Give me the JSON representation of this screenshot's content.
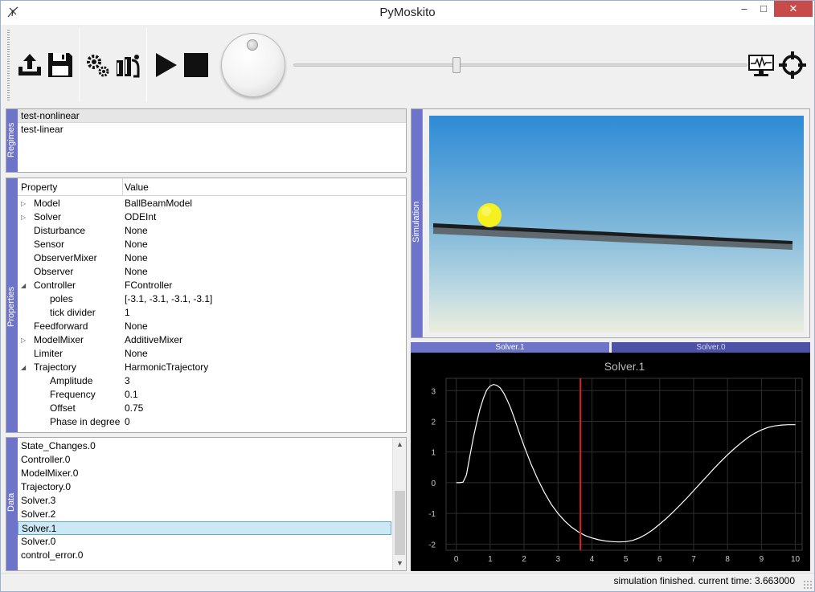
{
  "window": {
    "title": "PyMoskito",
    "minimize": "–",
    "maximize": "□",
    "close": "✕"
  },
  "toolbar": {
    "buttons": [
      "upload-icon",
      "save-icon",
      "settings-icon",
      "simulate-settings-icon",
      "play-icon",
      "stop-icon",
      "monitor-icon",
      "target-icon"
    ],
    "slider_position": 0.36
  },
  "regimes": {
    "label": "Regimes",
    "items": [
      "test-nonlinear",
      "test-linear"
    ],
    "selected": 0
  },
  "properties": {
    "label": "Properties",
    "header": {
      "property": "Property",
      "value": "Value"
    },
    "rows": [
      {
        "name": "Model",
        "value": "BallBeamModel",
        "level": 0,
        "arrow": "collapsed"
      },
      {
        "name": "Solver",
        "value": "ODEInt",
        "level": 0,
        "arrow": "collapsed"
      },
      {
        "name": "Disturbance",
        "value": "None",
        "level": 0,
        "arrow": ""
      },
      {
        "name": "Sensor",
        "value": "None",
        "level": 0,
        "arrow": ""
      },
      {
        "name": "ObserverMixer",
        "value": "None",
        "level": 0,
        "arrow": ""
      },
      {
        "name": "Observer",
        "value": "None",
        "level": 0,
        "arrow": ""
      },
      {
        "name": "Controller",
        "value": "FController",
        "level": 0,
        "arrow": "expanded"
      },
      {
        "name": "poles",
        "value": "[-3.1, -3.1, -3.1, -3.1]",
        "level": 1,
        "arrow": ""
      },
      {
        "name": "tick divider",
        "value": "1",
        "level": 1,
        "arrow": ""
      },
      {
        "name": "Feedforward",
        "value": "None",
        "level": 0,
        "arrow": ""
      },
      {
        "name": "ModelMixer",
        "value": "AdditiveMixer",
        "level": 0,
        "arrow": "collapsed"
      },
      {
        "name": "Limiter",
        "value": "None",
        "level": 0,
        "arrow": ""
      },
      {
        "name": "Trajectory",
        "value": "HarmonicTrajectory",
        "level": 0,
        "arrow": "expanded"
      },
      {
        "name": "Amplitude",
        "value": "3",
        "level": 1,
        "arrow": ""
      },
      {
        "name": "Frequency",
        "value": "0.1",
        "level": 1,
        "arrow": ""
      },
      {
        "name": "Offset",
        "value": "0.75",
        "level": 1,
        "arrow": ""
      },
      {
        "name": "Phase in degree",
        "value": "0",
        "level": 1,
        "arrow": ""
      }
    ]
  },
  "data": {
    "label": "Data",
    "items": [
      "State_Changes.0",
      "Controller.0",
      "ModelMixer.0",
      "Trajectory.0",
      "Solver.3",
      "Solver.2",
      "Solver.1",
      "Solver.0",
      "control_error.0"
    ],
    "selected": 6,
    "scroll_up": "▲",
    "scroll_down": "▼"
  },
  "simulation": {
    "label": "Simulation",
    "ball_color": "#f5f01e"
  },
  "plot_tabs": [
    "Solver.1",
    "Solver.0"
  ],
  "chart_data": {
    "type": "line",
    "title": "Solver.1",
    "xlabel": "",
    "ylabel": "",
    "xlim": [
      -0.3,
      10.2
    ],
    "ylim": [
      -2.2,
      3.4
    ],
    "x_ticks": [
      0,
      1,
      2,
      3,
      4,
      5,
      6,
      7,
      8,
      9,
      10
    ],
    "y_ticks": [
      -2,
      -1,
      0,
      1,
      2,
      3
    ],
    "grid": true,
    "cursor_x": 3.663,
    "cursor_color": "#e02020",
    "series": [
      {
        "color": "#ffffff",
        "x": [
          0,
          0.1,
          0.2,
          0.3,
          0.4,
          0.5,
          0.6,
          0.7,
          0.8,
          0.9,
          1.0,
          1.1,
          1.2,
          1.3,
          1.4,
          1.5,
          1.6,
          1.7,
          1.8,
          1.9,
          2.0,
          2.2,
          2.4,
          2.6,
          2.8,
          3.0,
          3.2,
          3.4,
          3.6,
          3.8,
          4.0,
          4.2,
          4.4,
          4.6,
          4.8,
          5.0,
          5.2,
          5.4,
          5.6,
          5.8,
          6.0,
          6.2,
          6.4,
          6.6,
          6.8,
          7.0,
          7.2,
          7.4,
          7.6,
          7.8,
          8.0,
          8.2,
          8.4,
          8.6,
          8.8,
          9.0,
          9.2,
          9.4,
          9.6,
          9.8,
          10.0
        ],
        "y": [
          0.0,
          0.0,
          0.02,
          0.25,
          0.85,
          1.45,
          1.95,
          2.4,
          2.75,
          3.02,
          3.15,
          3.2,
          3.17,
          3.08,
          2.92,
          2.7,
          2.44,
          2.14,
          1.82,
          1.5,
          1.2,
          0.62,
          0.12,
          -0.32,
          -0.7,
          -1.0,
          -1.25,
          -1.45,
          -1.6,
          -1.72,
          -1.8,
          -1.86,
          -1.9,
          -1.92,
          -1.93,
          -1.92,
          -1.88,
          -1.8,
          -1.68,
          -1.53,
          -1.35,
          -1.16,
          -0.95,
          -0.73,
          -0.5,
          -0.26,
          -0.02,
          0.22,
          0.46,
          0.69,
          0.91,
          1.11,
          1.3,
          1.47,
          1.61,
          1.72,
          1.8,
          1.85,
          1.88,
          1.89,
          1.89
        ]
      }
    ]
  },
  "status": {
    "text": "simulation finished.  current time: 3.663000"
  }
}
